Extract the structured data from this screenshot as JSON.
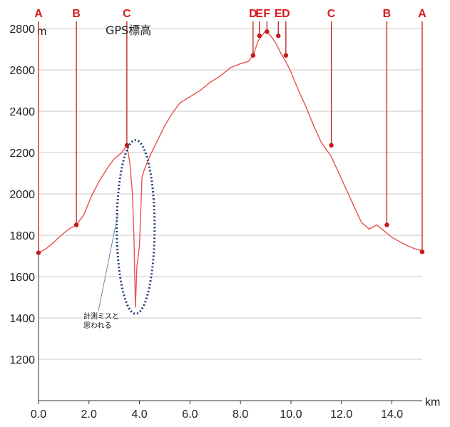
{
  "chart_data": {
    "type": "line",
    "title": "",
    "xlabel": "km",
    "ylabel": "m",
    "xlim": [
      0,
      15.2
    ],
    "ylim": [
      1000,
      2800
    ],
    "xticks": [
      0,
      2,
      4,
      6,
      8,
      10,
      12,
      14
    ],
    "xtick_labels": [
      "0.0",
      "2.0",
      "4.0",
      "6.0",
      "8.0",
      "10.0",
      "12.0",
      "14.0"
    ],
    "yticks": [
      1200,
      1400,
      1600,
      1800,
      2000,
      2200,
      2400,
      2600,
      2800
    ],
    "ytick_labels": [
      "1200",
      "1400",
      "1600",
      "1800",
      "2000",
      "2200",
      "2400",
      "2600",
      "2800"
    ],
    "grid": true,
    "line_color": "#e8524f",
    "marker_color": "#c41a1a",
    "series": [
      {
        "x": [
          0.0,
          0.3,
          0.6,
          0.9,
          1.2,
          1.5,
          1.8,
          2.1,
          2.4,
          2.7,
          3.0,
          3.3,
          3.5,
          3.62,
          3.72,
          3.78,
          3.84,
          3.9,
          4.0,
          4.1,
          4.2,
          4.4,
          4.6,
          4.8,
          5.0,
          5.3,
          5.6,
          6.0,
          6.4,
          6.8,
          7.2,
          7.6,
          8.0,
          8.3,
          8.5,
          8.7,
          8.85,
          9.0,
          9.2,
          9.4,
          9.6,
          9.8,
          10.0,
          10.3,
          10.6,
          10.9,
          11.2,
          11.6,
          11.9,
          12.2,
          12.5,
          12.8,
          13.1,
          13.4,
          13.7,
          14.0,
          14.3,
          14.6,
          14.9,
          15.2
        ],
        "y": [
          1715,
          1735,
          1765,
          1800,
          1830,
          1850,
          1900,
          1990,
          2060,
          2120,
          2170,
          2200,
          2235,
          2150,
          2000,
          1800,
          1450,
          1650,
          1750,
          2080,
          2120,
          2180,
          2230,
          2280,
          2330,
          2390,
          2440,
          2470,
          2500,
          2540,
          2570,
          2610,
          2630,
          2640,
          2670,
          2740,
          2765,
          2790,
          2765,
          2730,
          2680,
          2640,
          2590,
          2500,
          2420,
          2330,
          2250,
          2180,
          2100,
          2020,
          1940,
          1860,
          1830,
          1850,
          1820,
          1790,
          1770,
          1750,
          1735,
          1725
        ]
      }
    ],
    "waypoints": [
      {
        "label": "A",
        "x": 0.0,
        "y": 1715
      },
      {
        "label": "B",
        "x": 1.5,
        "y": 1850
      },
      {
        "label": "C",
        "x": 3.5,
        "y": 2235
      },
      {
        "label": "D",
        "x": 8.5,
        "y": 2670
      },
      {
        "label": "E",
        "x": 8.75,
        "y": 2765
      },
      {
        "label": "F",
        "x": 9.05,
        "y": 2785
      },
      {
        "label": "E",
        "x": 9.5,
        "y": 2765
      },
      {
        "label": "D",
        "x": 9.8,
        "y": 2670
      },
      {
        "label": "C",
        "x": 11.6,
        "y": 2235
      },
      {
        "label": "B",
        "x": 13.8,
        "y": 1850
      },
      {
        "label": "A",
        "x": 15.2,
        "y": 1720
      }
    ],
    "annotations": {
      "gps_label": "GPS標高",
      "note_line1": "計測ミスと",
      "note_line2": "思われる",
      "ellipse_center": {
        "x": 3.85,
        "y": 1840
      },
      "ellipse_rx_km": 0.75,
      "ellipse_ry_m": 420,
      "ellipse_color": "#1f3f7a",
      "leader_color": "#5a7ea8"
    }
  }
}
